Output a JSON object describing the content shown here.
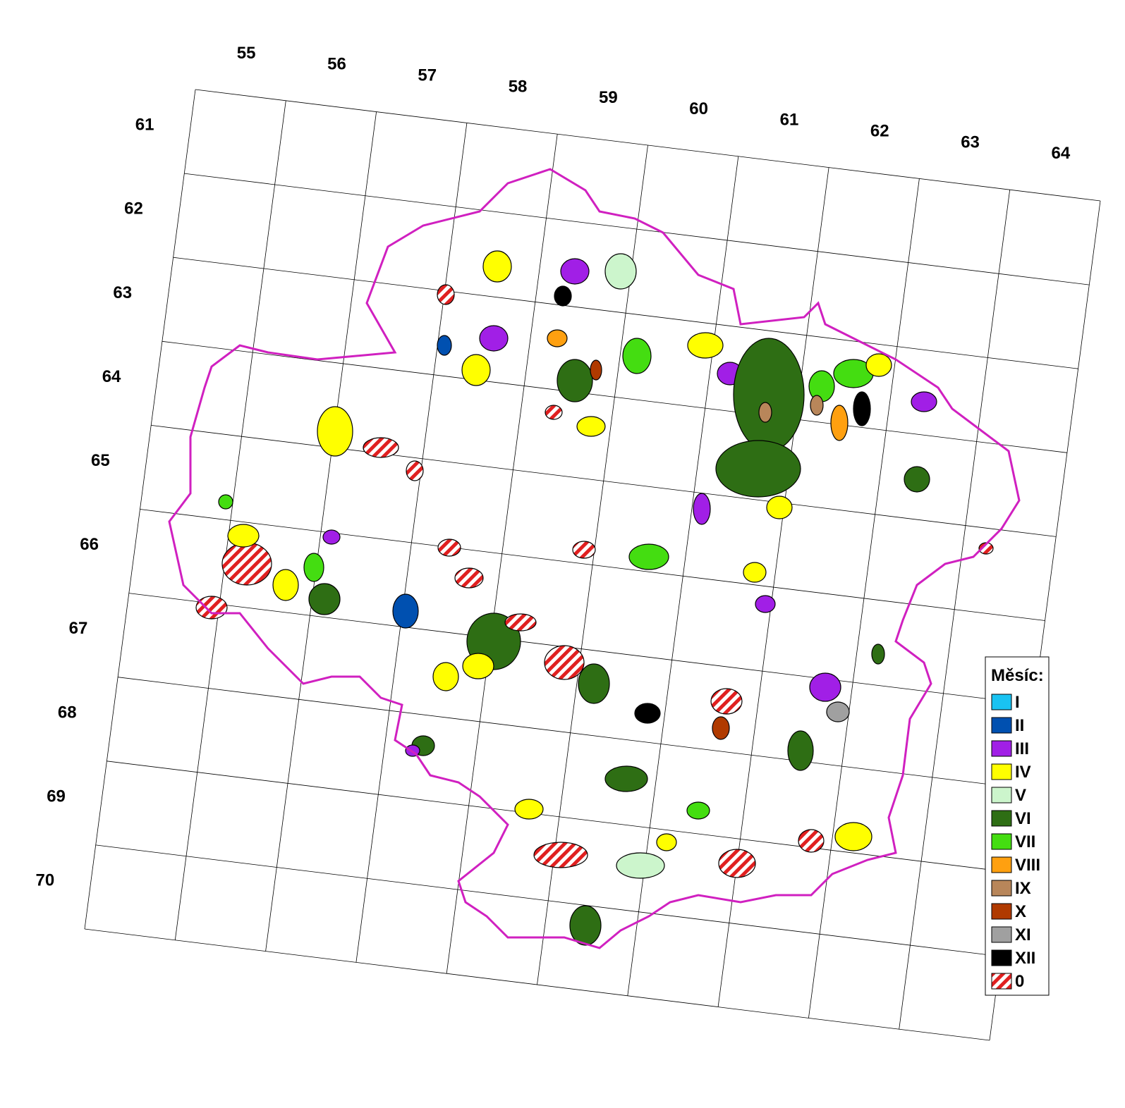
{
  "column_labels": [
    "55",
    "56",
    "57",
    "58",
    "59",
    "60",
    "61",
    "62",
    "63",
    "64"
  ],
  "row_labels": [
    "61",
    "62",
    "63",
    "64",
    "65",
    "66",
    "67",
    "68",
    "69",
    "70"
  ],
  "legend": {
    "title": "Měsíc:",
    "items": [
      {
        "label": "I",
        "color": "#19c3f2"
      },
      {
        "label": "II",
        "color": "#0050b0"
      },
      {
        "label": "III",
        "color": "#a11fe6"
      },
      {
        "label": "IV",
        "color": "#ffff00"
      },
      {
        "label": "V",
        "color": "#ccf5cc"
      },
      {
        "label": "VI",
        "color": "#2e6e14"
      },
      {
        "label": "VII",
        "color": "#44dd11"
      },
      {
        "label": "VIII",
        "color": "#ffa010"
      },
      {
        "label": "IX",
        "color": "#b8865a"
      },
      {
        "label": "X",
        "color": "#b03a00"
      },
      {
        "label": "XI",
        "color": "#a0a0a0"
      },
      {
        "label": "XII",
        "color": "#000000"
      },
      {
        "label": "0",
        "color": "#e02020",
        "pattern": "hatch"
      }
    ]
  }
}
